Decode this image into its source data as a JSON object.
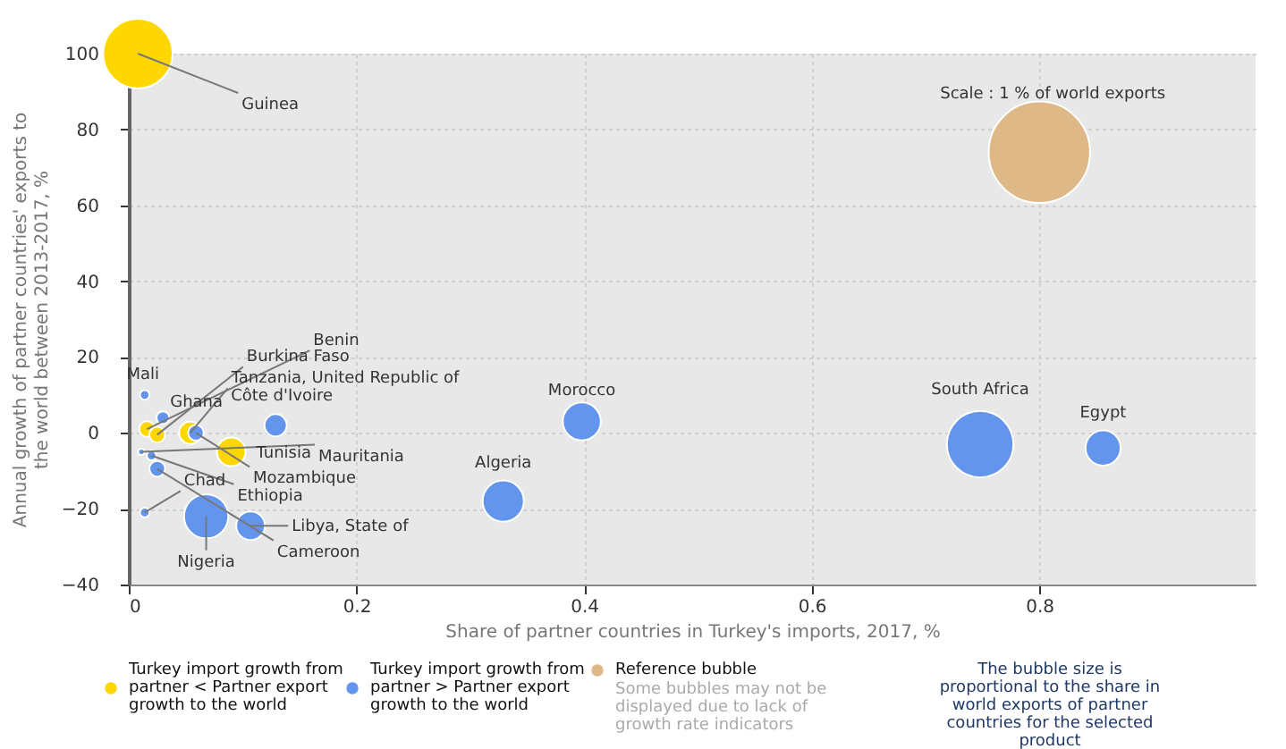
{
  "chart_data": {
    "type": "bubble",
    "xlabel": "Share of partner countries in Turkey's imports, 2017, %",
    "ylabel": "Annual growth of partner countries' exports to the world between 2013-2017, %",
    "xlim": [
      0,
      0.99
    ],
    "ylim": [
      -40,
      100
    ],
    "xticks": [
      0,
      0.2,
      0.4,
      0.6,
      0.8
    ],
    "yticks": [
      -40,
      -20,
      0,
      20,
      40,
      60,
      80,
      100
    ],
    "grid": true,
    "legend": "bottom",
    "series": [
      {
        "name": "Turkey import growth from partner < Partner export growth to the world",
        "color": "#ffd700",
        "x": [
          0.008,
          0.016,
          0.025,
          0.054,
          0.09
        ],
        "values": [
          100,
          1,
          -0.5,
          0,
          -5
        ],
        "sizes": [
          0.47,
          0.024,
          0.024,
          0.048,
          0.08
        ]
      },
      {
        "name": "Turkey import growth from partner > Partner export growth to the world",
        "color": "#6495ed",
        "x": [
          0.014,
          0.03,
          0.129,
          0.059,
          0.011,
          0.02,
          0.025,
          0.014,
          0.068,
          0.107,
          0.329,
          0.398,
          0.748,
          0.856
        ],
        "values": [
          10,
          4,
          2,
          0,
          -5,
          -6,
          -9.5,
          -21,
          -22,
          -24.5,
          -18,
          3,
          -3,
          -4
        ],
        "sizes": [
          0.009,
          0.016,
          0.048,
          0.024,
          0.004,
          0.009,
          0.024,
          0.009,
          0.19,
          0.08,
          0.165,
          0.14,
          0.43,
          0.12
        ]
      },
      {
        "name": "Reference bubble",
        "color": "#deb887",
        "x": [
          0.8
        ],
        "values": [
          74
        ],
        "sizes": [
          1
        ]
      }
    ],
    "annotations": [
      {
        "text": "Guinea",
        "x": 0.008,
        "y": 100
      },
      {
        "text": "Benin",
        "x": 0.016,
        "y": 1
      },
      {
        "text": "Burkina Faso",
        "x": 0.025,
        "y": -0.5
      },
      {
        "text": "Tanzania, United Republic of",
        "x": 0.054,
        "y": 0
      },
      {
        "text": "Tunisia",
        "x": 0.09,
        "y": -5
      },
      {
        "text": "Mali",
        "x": 0.014,
        "y": 10
      },
      {
        "text": "Ghana",
        "x": 0.03,
        "y": 4
      },
      {
        "text": "Côte d'Ivoire",
        "x": 0.129,
        "y": 2
      },
      {
        "text": "Mozambique",
        "x": 0.059,
        "y": 0
      },
      {
        "text": "Mauritania",
        "x": 0.011,
        "y": -5
      },
      {
        "text": "Ethiopia",
        "x": 0.02,
        "y": -6
      },
      {
        "text": "Cameroon",
        "x": 0.025,
        "y": -9.5
      },
      {
        "text": "Chad",
        "x": 0.014,
        "y": -21
      },
      {
        "text": "Nigeria",
        "x": 0.068,
        "y": -22
      },
      {
        "text": "Libya, State of",
        "x": 0.107,
        "y": -24.5
      },
      {
        "text": "Algeria",
        "x": 0.329,
        "y": -18
      },
      {
        "text": "Morocco",
        "x": 0.398,
        "y": 3
      },
      {
        "text": "South Africa",
        "x": 0.748,
        "y": -3
      },
      {
        "text": "Egypt",
        "x": 0.856,
        "y": -4
      },
      "Scale : 1 % of world exports",
      "Some bubbles may not be displayed due to lack of growth rate indicators",
      "The bubble size is proportional to the share in world exports of partner countries for the selected product"
    ]
  }
}
